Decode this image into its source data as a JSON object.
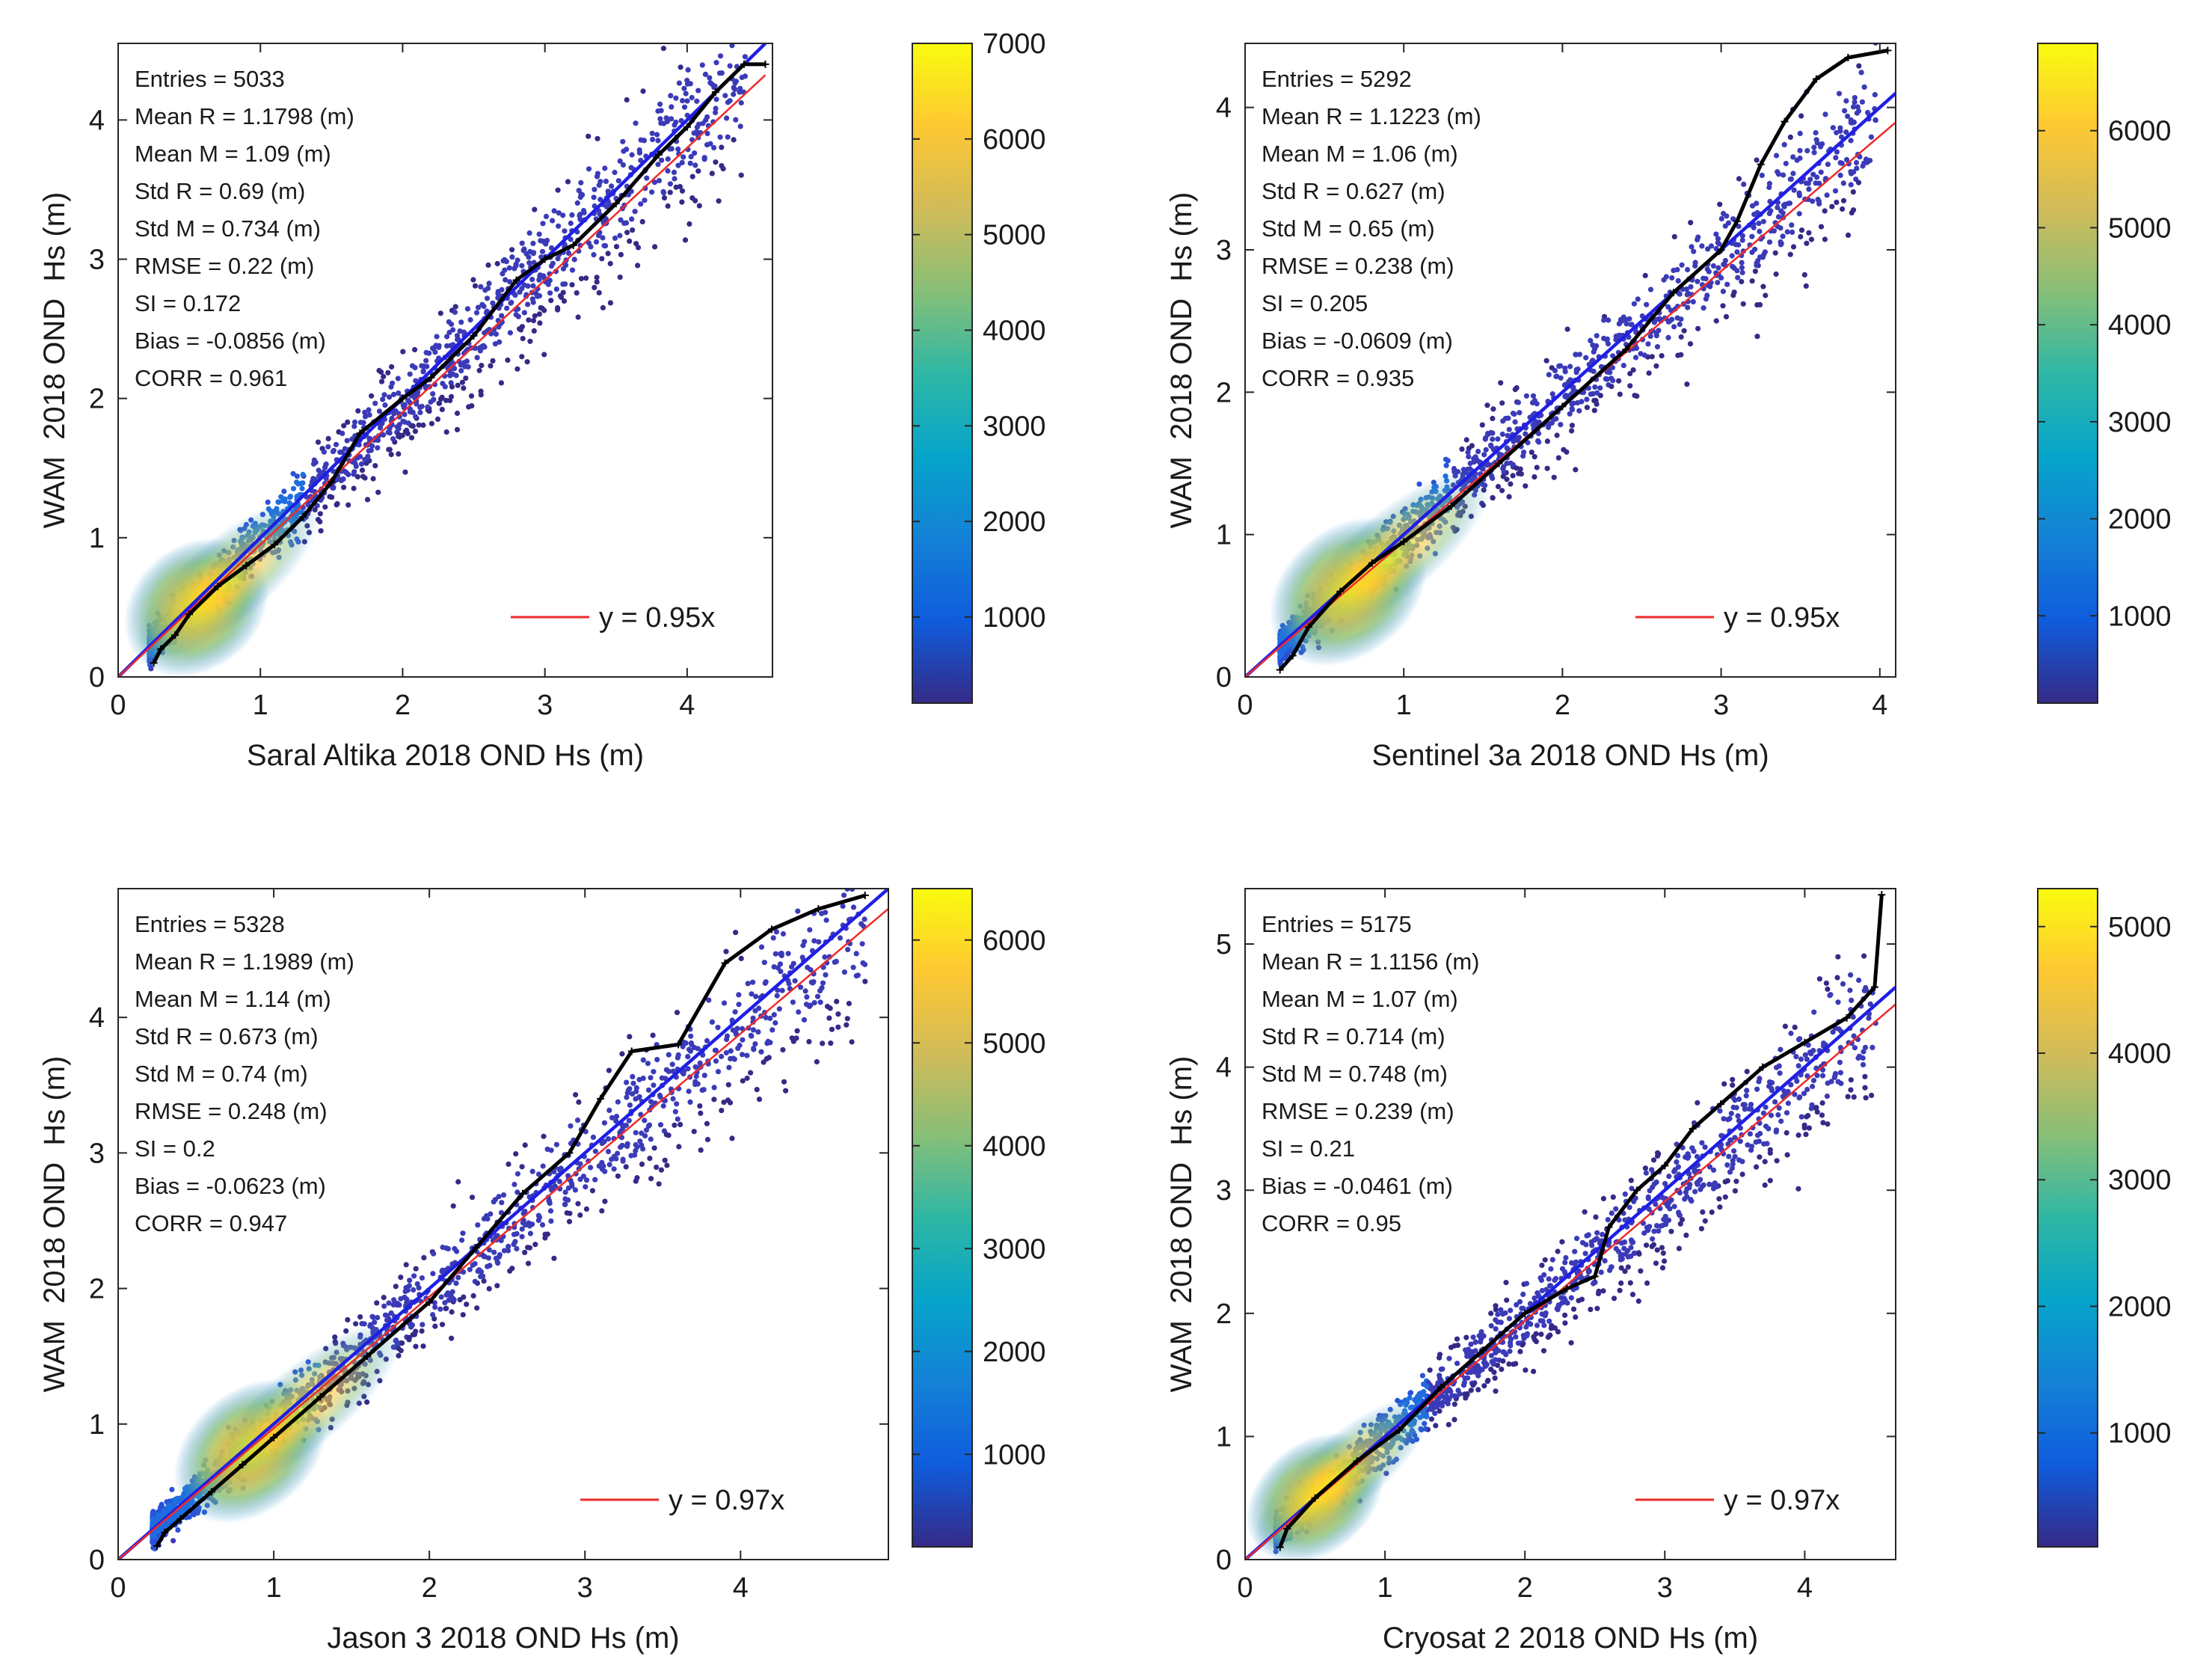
{
  "chart_data": [
    {
      "type": "scatter",
      "subtype": "density-scatter-with-qq",
      "xlabel": "Saral Altika 2018 OND Hs (m)",
      "ylabel": "WAM  2018 OND  Hs (m)",
      "xlim": [
        0,
        4.6
      ],
      "ylim": [
        0,
        4.55
      ],
      "xticks": [
        0,
        1,
        2,
        3,
        4
      ],
      "yticks": [
        0,
        1,
        2,
        3,
        4
      ],
      "stats": [
        "Entries = 5033",
        "Mean R = 1.1798 (m)",
        "Mean M = 1.09 (m)",
        "Std R = 0.69 (m)",
        "Std M = 0.734 (m)",
        "RMSE = 0.22 (m)",
        "SI = 0.172",
        "Bias = -0.0856 (m)",
        "CORR = 0.961"
      ],
      "fit_label": "y = 0.95x",
      "fit_slope": 0.95,
      "identity_line": true,
      "colorbar": {
        "min": 100,
        "max": 7000,
        "ticks": [
          1000,
          2000,
          3000,
          4000,
          5000,
          6000,
          7000
        ]
      },
      "density_core": {
        "x": 0.55,
        "y": 0.5
      },
      "qq_points": [
        [
          0.25,
          0.1
        ],
        [
          0.3,
          0.2
        ],
        [
          0.4,
          0.3
        ],
        [
          0.5,
          0.45
        ],
        [
          0.7,
          0.65
        ],
        [
          0.9,
          0.8
        ],
        [
          1.1,
          0.95
        ],
        [
          1.3,
          1.15
        ],
        [
          1.5,
          1.4
        ],
        [
          1.7,
          1.75
        ],
        [
          2.0,
          2.0
        ],
        [
          2.2,
          2.15
        ],
        [
          2.5,
          2.45
        ],
        [
          2.8,
          2.85
        ],
        [
          3.0,
          3.0
        ],
        [
          3.2,
          3.1
        ],
        [
          3.5,
          3.4
        ],
        [
          3.8,
          3.75
        ],
        [
          4.0,
          3.95
        ],
        [
          4.2,
          4.2
        ],
        [
          4.4,
          4.4
        ],
        [
          4.55,
          4.4
        ]
      ]
    },
    {
      "type": "scatter",
      "subtype": "density-scatter-with-qq",
      "xlabel": "Sentinel 3a 2018 OND Hs (m)",
      "ylabel": "WAM  2018 OND  Hs (m)",
      "xlim": [
        0,
        4.1
      ],
      "ylim": [
        0,
        4.45
      ],
      "xticks": [
        0,
        1,
        2,
        3,
        4
      ],
      "yticks": [
        0,
        1,
        2,
        3,
        4
      ],
      "stats": [
        "Entries = 5292",
        "Mean R = 1.1223 (m)",
        "Mean M = 1.06 (m)",
        "Std R = 0.627 (m)",
        "Std M = 0.65 (m)",
        "RMSE = 0.238 (m)",
        "SI = 0.205",
        "Bias = -0.0609 (m)",
        "CORR = 0.935"
      ],
      "fit_label": "y = 0.95x",
      "fit_slope": 0.95,
      "identity_line": true,
      "colorbar": {
        "min": 100,
        "max": 6900,
        "ticks": [
          1000,
          2000,
          3000,
          4000,
          5000,
          6000
        ]
      },
      "density_core": {
        "x": 0.65,
        "y": 0.6
      },
      "qq_points": [
        [
          0.22,
          0.05
        ],
        [
          0.3,
          0.15
        ],
        [
          0.4,
          0.35
        ],
        [
          0.6,
          0.6
        ],
        [
          0.8,
          0.8
        ],
        [
          1.0,
          0.95
        ],
        [
          1.3,
          1.2
        ],
        [
          1.6,
          1.5
        ],
        [
          2.0,
          1.9
        ],
        [
          2.4,
          2.3
        ],
        [
          2.7,
          2.7
        ],
        [
          3.0,
          3.0
        ],
        [
          3.1,
          3.2
        ],
        [
          3.25,
          3.6
        ],
        [
          3.4,
          3.9
        ],
        [
          3.6,
          4.2
        ],
        [
          3.8,
          4.35
        ],
        [
          4.05,
          4.4
        ]
      ]
    },
    {
      "type": "scatter",
      "subtype": "density-scatter-with-qq",
      "xlabel": "Jason 3 2018 OND Hs (m)",
      "ylabel": "WAM  2018 OND  Hs (m)",
      "xlim": [
        0,
        4.95
      ],
      "ylim": [
        0,
        4.95
      ],
      "xticks": [
        0,
        1,
        2,
        3,
        4
      ],
      "yticks": [
        0,
        1,
        2,
        3,
        4
      ],
      "stats": [
        "Entries = 5328",
        "Mean R = 1.1989 (m)",
        "Mean M = 1.14 (m)",
        "Std R = 0.673 (m)",
        "Std M = 0.74 (m)",
        "RMSE = 0.248 (m)",
        "SI = 0.2",
        "Bias = -0.0623 (m)",
        "CORR = 0.947"
      ],
      "fit_label": "y = 0.97x",
      "fit_slope": 0.97,
      "identity_line": true,
      "colorbar": {
        "min": 100,
        "max": 6500,
        "ticks": [
          1000,
          2000,
          3000,
          4000,
          5000,
          6000
        ]
      },
      "density_core": {
        "x": 0.85,
        "y": 0.8
      },
      "qq_points": [
        [
          0.25,
          0.1
        ],
        [
          0.3,
          0.2
        ],
        [
          0.4,
          0.3
        ],
        [
          0.6,
          0.5
        ],
        [
          0.8,
          0.7
        ],
        [
          1.0,
          0.9
        ],
        [
          1.3,
          1.2
        ],
        [
          1.6,
          1.5
        ],
        [
          2.0,
          1.9
        ],
        [
          2.3,
          2.3
        ],
        [
          2.6,
          2.7
        ],
        [
          2.9,
          3.0
        ],
        [
          3.1,
          3.4
        ],
        [
          3.3,
          3.75
        ],
        [
          3.6,
          3.8
        ],
        [
          3.9,
          4.4
        ],
        [
          4.2,
          4.65
        ],
        [
          4.5,
          4.8
        ],
        [
          4.8,
          4.9
        ]
      ]
    },
    {
      "type": "scatter",
      "subtype": "density-scatter-with-qq",
      "xlabel": "Cryosat 2 2018 OND Hs (m)",
      "ylabel": "WAM  2018 OND  Hs (m)",
      "xlim": [
        0,
        4.65
      ],
      "ylim": [
        0,
        5.45
      ],
      "xticks": [
        0,
        1,
        2,
        3,
        4
      ],
      "yticks": [
        0,
        1,
        2,
        3,
        4,
        5
      ],
      "stats": [
        "Entries = 5175",
        "Mean R = 1.1156 (m)",
        "Mean M = 1.07 (m)",
        "Std R = 0.714 (m)",
        "Std M = 0.748 (m)",
        "RMSE = 0.239 (m)",
        "SI = 0.21",
        "Bias = -0.0461 (m)",
        "CORR = 0.95"
      ],
      "fit_label": "y = 0.97x",
      "fit_slope": 0.97,
      "identity_line": true,
      "colorbar": {
        "min": 100,
        "max": 5300,
        "ticks": [
          1000,
          2000,
          3000,
          4000,
          5000
        ]
      },
      "density_core": {
        "x": 0.5,
        "y": 0.5
      },
      "qq_points": [
        [
          0.25,
          0.1
        ],
        [
          0.3,
          0.25
        ],
        [
          0.5,
          0.5
        ],
        [
          0.8,
          0.8
        ],
        [
          1.1,
          1.05
        ],
        [
          1.4,
          1.4
        ],
        [
          1.7,
          1.7
        ],
        [
          2.0,
          2.0
        ],
        [
          2.3,
          2.2
        ],
        [
          2.5,
          2.3
        ],
        [
          2.6,
          2.7
        ],
        [
          2.8,
          3.0
        ],
        [
          3.0,
          3.2
        ],
        [
          3.2,
          3.5
        ],
        [
          3.4,
          3.7
        ],
        [
          3.7,
          4.0
        ],
        [
          4.0,
          4.2
        ],
        [
          4.3,
          4.4
        ],
        [
          4.5,
          4.65
        ],
        [
          4.55,
          5.4
        ]
      ]
    }
  ]
}
